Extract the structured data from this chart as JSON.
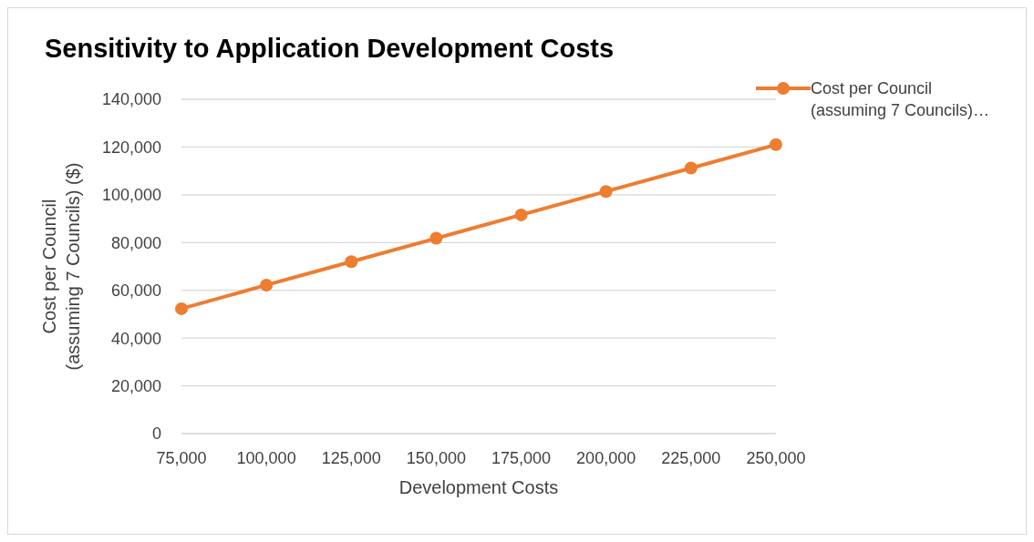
{
  "chart_data": {
    "type": "line",
    "title": "Sensitivity to Application Development Costs",
    "xlabel": "Development Costs",
    "ylabel": "Cost per Council\n(assuming 7 Councils) ($)",
    "categories": [
      "75,000",
      "100,000",
      "125,000",
      "150,000",
      "175,000",
      "200,000",
      "225,000",
      "250,000"
    ],
    "series": [
      {
        "name": "Cost per Council\n(assuming 7 Councils)…",
        "color": "#ed7d31",
        "values": [
          52300,
          62200,
          72000,
          81800,
          91600,
          101400,
          111200,
          121000
        ]
      }
    ],
    "ylim": [
      0,
      140000
    ],
    "yticks": [
      0,
      {
        "value": 20000,
        "label": "20,000"
      },
      {
        "value": 40000,
        "label": "40,000"
      },
      {
        "value": 60000,
        "label": "60,000"
      },
      {
        "value": 80000,
        "label": "80,000"
      },
      {
        "value": 100000,
        "label": "100,000"
      },
      {
        "value": 120000,
        "label": "120,000"
      },
      {
        "value": 140000,
        "label": "140,000"
      }
    ],
    "grid": "y",
    "legend": "top right",
    "marker": "circle",
    "line_style": "solid"
  }
}
